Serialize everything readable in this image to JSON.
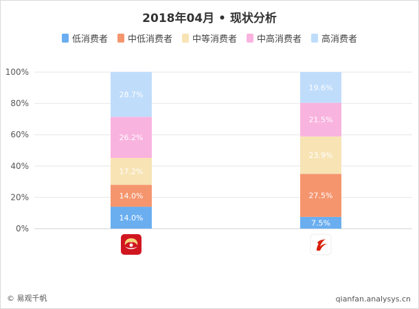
{
  "chart_data": {
    "type": "bar",
    "stacked": true,
    "title": "2018年04月 • 现状分析",
    "categories": [
      "海南航空",
      "中国国航"
    ],
    "ylim": [
      0,
      100
    ],
    "yticks": [
      "0%",
      "20%",
      "40%",
      "60%",
      "80%",
      "100%"
    ],
    "series": [
      {
        "name": "低消费者",
        "color": "#6aaef0",
        "values": [
          14.0,
          7.5
        ],
        "labels": [
          "14.0%",
          "7.5%"
        ]
      },
      {
        "name": "中低消费者",
        "color": "#f5956e",
        "values": [
          14.0,
          27.5
        ],
        "labels": [
          "14.0%",
          "27.5%"
        ]
      },
      {
        "name": "中等消费者",
        "color": "#f7e3b4",
        "values": [
          17.2,
          23.9
        ],
        "labels": [
          "17.2%",
          "23.9%"
        ]
      },
      {
        "name": "中高消费者",
        "color": "#f9b3df",
        "values": [
          26.2,
          21.5
        ],
        "labels": [
          "26.2%",
          "21.5%"
        ]
      },
      {
        "name": "高消费者",
        "color": "#bfdcfb",
        "values": [
          28.7,
          19.6
        ],
        "labels": [
          "28.7%",
          "19.6%"
        ]
      }
    ],
    "legend_position": "top"
  },
  "logos": [
    {
      "name": "hainan-airlines-logo",
      "color": "#d0161f"
    },
    {
      "name": "air-china-logo",
      "color": "#d81e06"
    }
  ],
  "footer": {
    "left": "© 易观千帆",
    "right": "qianfan.analysys.cn"
  }
}
